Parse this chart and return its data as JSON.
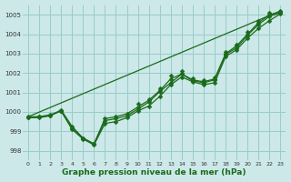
{
  "xlabel": "Graphe pression niveau de la mer (hPa)",
  "bg_color": "#cce8e8",
  "grid_color": "#99cccc",
  "line_color": "#1a6b1a",
  "xlim": [
    -0.5,
    23.5
  ],
  "ylim": [
    997.5,
    1005.5
  ],
  "yticks": [
    998,
    999,
    1000,
    1001,
    1002,
    1003,
    1004,
    1005
  ],
  "xticks": [
    0,
    1,
    2,
    3,
    4,
    5,
    6,
    7,
    8,
    9,
    10,
    11,
    12,
    13,
    14,
    15,
    16,
    17,
    18,
    19,
    20,
    21,
    22,
    23
  ],
  "line1_x": [
    0,
    1,
    2,
    3,
    4,
    5,
    6,
    7,
    8,
    9,
    10,
    11,
    12,
    13,
    14,
    15,
    16,
    17,
    18,
    19,
    20,
    21,
    22,
    23
  ],
  "line1_y": [
    999.7,
    999.7,
    999.8,
    1000.05,
    999.1,
    998.6,
    998.3,
    999.4,
    999.5,
    999.7,
    1000.05,
    1000.3,
    1000.8,
    1001.4,
    1001.8,
    1001.55,
    1001.4,
    1001.5,
    1002.85,
    1003.2,
    1003.8,
    1004.3,
    1004.7,
    1005.05
  ],
  "line2_x": [
    0,
    1,
    2,
    3,
    4,
    5,
    6,
    7,
    8,
    9,
    10,
    11,
    12,
    13,
    14,
    15,
    16,
    17,
    18,
    19,
    20,
    21,
    22,
    23
  ],
  "line2_y": [
    999.7,
    999.75,
    999.8,
    1000.1,
    999.25,
    998.65,
    998.35,
    999.55,
    999.65,
    999.8,
    1000.15,
    1000.5,
    1001.05,
    1001.5,
    1001.95,
    1001.6,
    1001.5,
    1001.65,
    1002.95,
    1003.3,
    1003.95,
    1004.5,
    1004.92,
    1005.1
  ],
  "line3_x": [
    0,
    1,
    2,
    3,
    4,
    5,
    6,
    7,
    8,
    9,
    10,
    11,
    12,
    13,
    14,
    15,
    16,
    17,
    18,
    19,
    20,
    21,
    22,
    23
  ],
  "line3_y": [
    999.75,
    999.75,
    999.85,
    1000.05,
    999.15,
    998.65,
    998.35,
    999.65,
    999.75,
    999.9,
    1000.25,
    1000.6,
    1001.1,
    1001.7,
    1001.95,
    1001.65,
    1001.55,
    1001.7,
    1003.0,
    1003.4,
    1004.0,
    1004.6,
    1005.0,
    1005.15
  ],
  "line4_x": [
    0,
    23
  ],
  "line4_y": [
    999.75,
    1005.2
  ],
  "line4_markers_x": [
    3,
    10,
    11,
    12,
    13,
    14,
    15,
    16,
    17,
    18,
    19,
    20,
    21,
    22,
    23
  ],
  "line4_markers_y": [
    1000.05,
    1000.4,
    1000.65,
    1001.2,
    1001.85,
    1002.1,
    1001.75,
    1001.65,
    1001.8,
    1003.1,
    1003.45,
    1004.1,
    1004.7,
    1005.1,
    1005.2
  ]
}
